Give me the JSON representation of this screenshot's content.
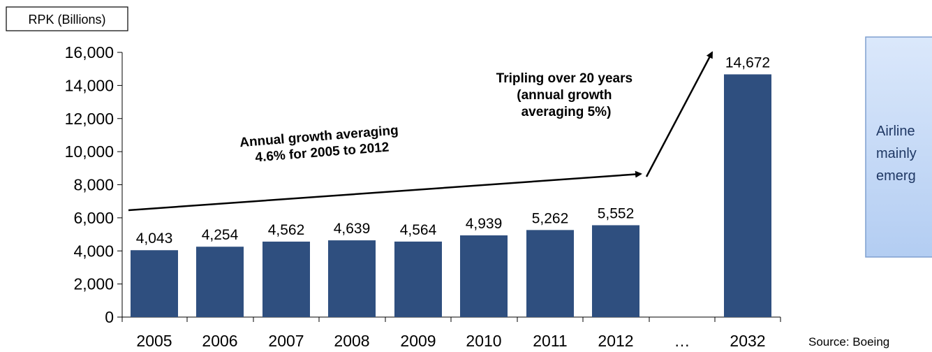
{
  "chart_data": {
    "type": "bar",
    "title": "",
    "ylabel": "RPK (Billions)",
    "xlabel": "",
    "ylim": [
      0,
      16000
    ],
    "yticks": [
      "0",
      "2,000",
      "4,000",
      "6,000",
      "8,000",
      "10,000",
      "12,000",
      "14,000",
      "16,000"
    ],
    "categories": [
      "2005",
      "2006",
      "2007",
      "2008",
      "2009",
      "2010",
      "2011",
      "2012",
      "…",
      "2032"
    ],
    "values": [
      4043,
      4254,
      4562,
      4639,
      4564,
      4939,
      5262,
      5552,
      null,
      14672
    ],
    "value_labels": [
      "4,043",
      "4,254",
      "4,562",
      "4,639",
      "4,564",
      "4,939",
      "5,262",
      "5,552",
      "",
      "14,672"
    ],
    "bar_color": "#2f4f7f",
    "grid": false,
    "legend": "none",
    "annotations": [
      {
        "lines": [
          "Annual growth averaging",
          "4.6% for 2005 to 2012"
        ]
      },
      {
        "lines": [
          "Tripling over 20 years",
          "(annual growth",
          "averaging 5%)"
        ]
      }
    ]
  },
  "callout": {
    "lines": [
      "Airline",
      "mainly",
      "emerg"
    ],
    "fill_top": "#dbe8fb",
    "fill_bottom": "#b3cdf2",
    "border": "#7f9fcf"
  },
  "source": "Source: Boeing"
}
